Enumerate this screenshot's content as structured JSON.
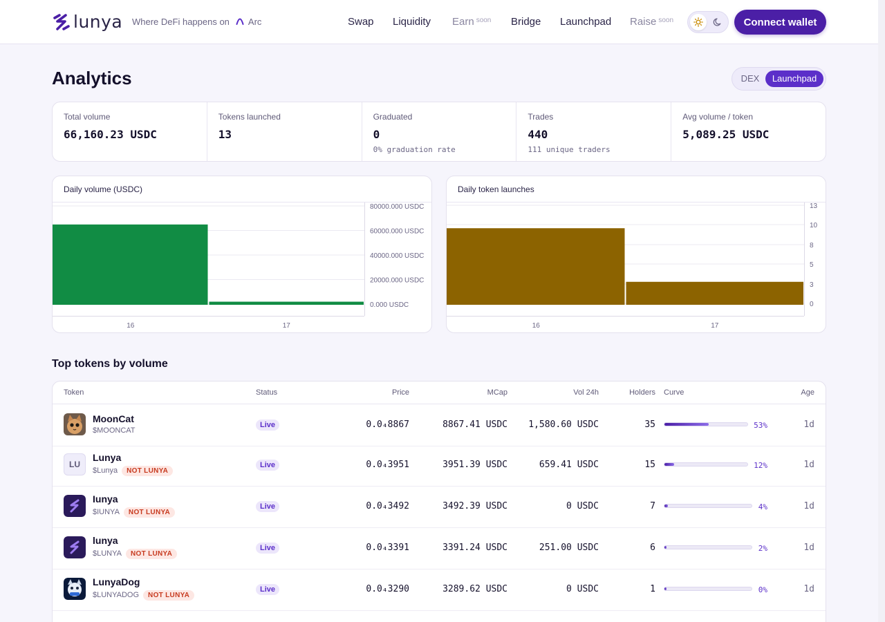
{
  "header": {
    "logo_text": "lunya",
    "tagline": "Where DeFi happens on",
    "chain": "Arc",
    "nav": [
      {
        "label": "Swap",
        "badge": ""
      },
      {
        "label": "Liquidity",
        "badge": ""
      },
      {
        "label": "Earn",
        "badge": "soon"
      },
      {
        "label": "Bridge",
        "badge": ""
      },
      {
        "label": "Launchpad",
        "badge": ""
      },
      {
        "label": "Raise",
        "badge": "soon"
      }
    ],
    "connect_label": "Connect wallet"
  },
  "page": {
    "title": "Analytics",
    "toggle": {
      "dex": "DEX",
      "launchpad": "Launchpad",
      "selected": "Launchpad"
    }
  },
  "stats": [
    {
      "label": "Total volume",
      "value": "66,160.23 USDC",
      "sub": ""
    },
    {
      "label": "Tokens launched",
      "value": "13",
      "sub": ""
    },
    {
      "label": "Graduated",
      "value": "0",
      "sub": "0% graduation rate"
    },
    {
      "label": "Trades",
      "value": "440",
      "sub": "111 unique traders"
    },
    {
      "label": "Avg volume / token",
      "value": "5,089.25 USDC",
      "sub": ""
    }
  ],
  "chart_data": [
    {
      "type": "bar",
      "title": "Daily volume (USDC)",
      "categories": [
        "16",
        "17"
      ],
      "values": [
        65000,
        2500
      ],
      "yticks": [
        "80000.000 USDC",
        "60000.000 USDC",
        "40000.000 USDC",
        "20000.000 USDC",
        "0.000 USDC"
      ],
      "ylim": [
        0,
        80000
      ],
      "color": "#118c44"
    },
    {
      "type": "bar",
      "title": "Daily token launches",
      "categories": [
        "16",
        "17"
      ],
      "values": [
        10,
        3
      ],
      "yticks": [
        "13",
        "10",
        "8",
        "5",
        "3",
        "0"
      ],
      "ylim": [
        0,
        13
      ],
      "color": "#8c6300"
    }
  ],
  "table": {
    "title": "Top tokens by volume",
    "columns": [
      "Token",
      "Status",
      "Price",
      "MCap",
      "Vol 24h",
      "Holders",
      "Curve",
      "Age"
    ],
    "rows": [
      {
        "name": "MoonCat",
        "symbol": "$MOONCAT",
        "warning": "",
        "avatar": "mooncat-image",
        "status": "Live",
        "price": "0.0₄8867",
        "mcap": "8867.41 USDC",
        "vol": "1,580.60 USDC",
        "holders": "35",
        "curve": "53%",
        "curve_value": 0.53,
        "age": "1d"
      },
      {
        "name": "Lunya",
        "symbol": "$Lunya",
        "warning": "NOT LUNYA",
        "avatar": "LU",
        "status": "Live",
        "price": "0.0₄3951",
        "mcap": "3951.39 USDC",
        "vol": "659.41 USDC",
        "holders": "15",
        "curve": "12%",
        "curve_value": 0.12,
        "age": "1d"
      },
      {
        "name": "Iunya",
        "symbol": "$IUNYA",
        "warning": "NOT LUNYA",
        "avatar": "lunya-logo",
        "status": "Live",
        "price": "0.0₄3492",
        "mcap": "3492.39 USDC",
        "vol": "0 USDC",
        "holders": "7",
        "curve": "4%",
        "curve_value": 0.04,
        "age": "1d"
      },
      {
        "name": "lunya",
        "symbol": "$LUNYA",
        "warning": "NOT LUNYA",
        "avatar": "lunya-logo",
        "status": "Live",
        "price": "0.0₄3391",
        "mcap": "3391.24 USDC",
        "vol": "251.00 USDC",
        "holders": "6",
        "curve": "2%",
        "curve_value": 0.02,
        "age": "1d"
      },
      {
        "name": "LunyaDog",
        "symbol": "$LUNYADOG",
        "warning": "NOT LUNYA",
        "avatar": "lunyadog-image",
        "status": "Live",
        "price": "0.0₄3290",
        "mcap": "3289.62 USDC",
        "vol": "0 USDC",
        "holders": "1",
        "curve": "0%",
        "curve_value": 0.0,
        "age": "1d"
      }
    ]
  }
}
